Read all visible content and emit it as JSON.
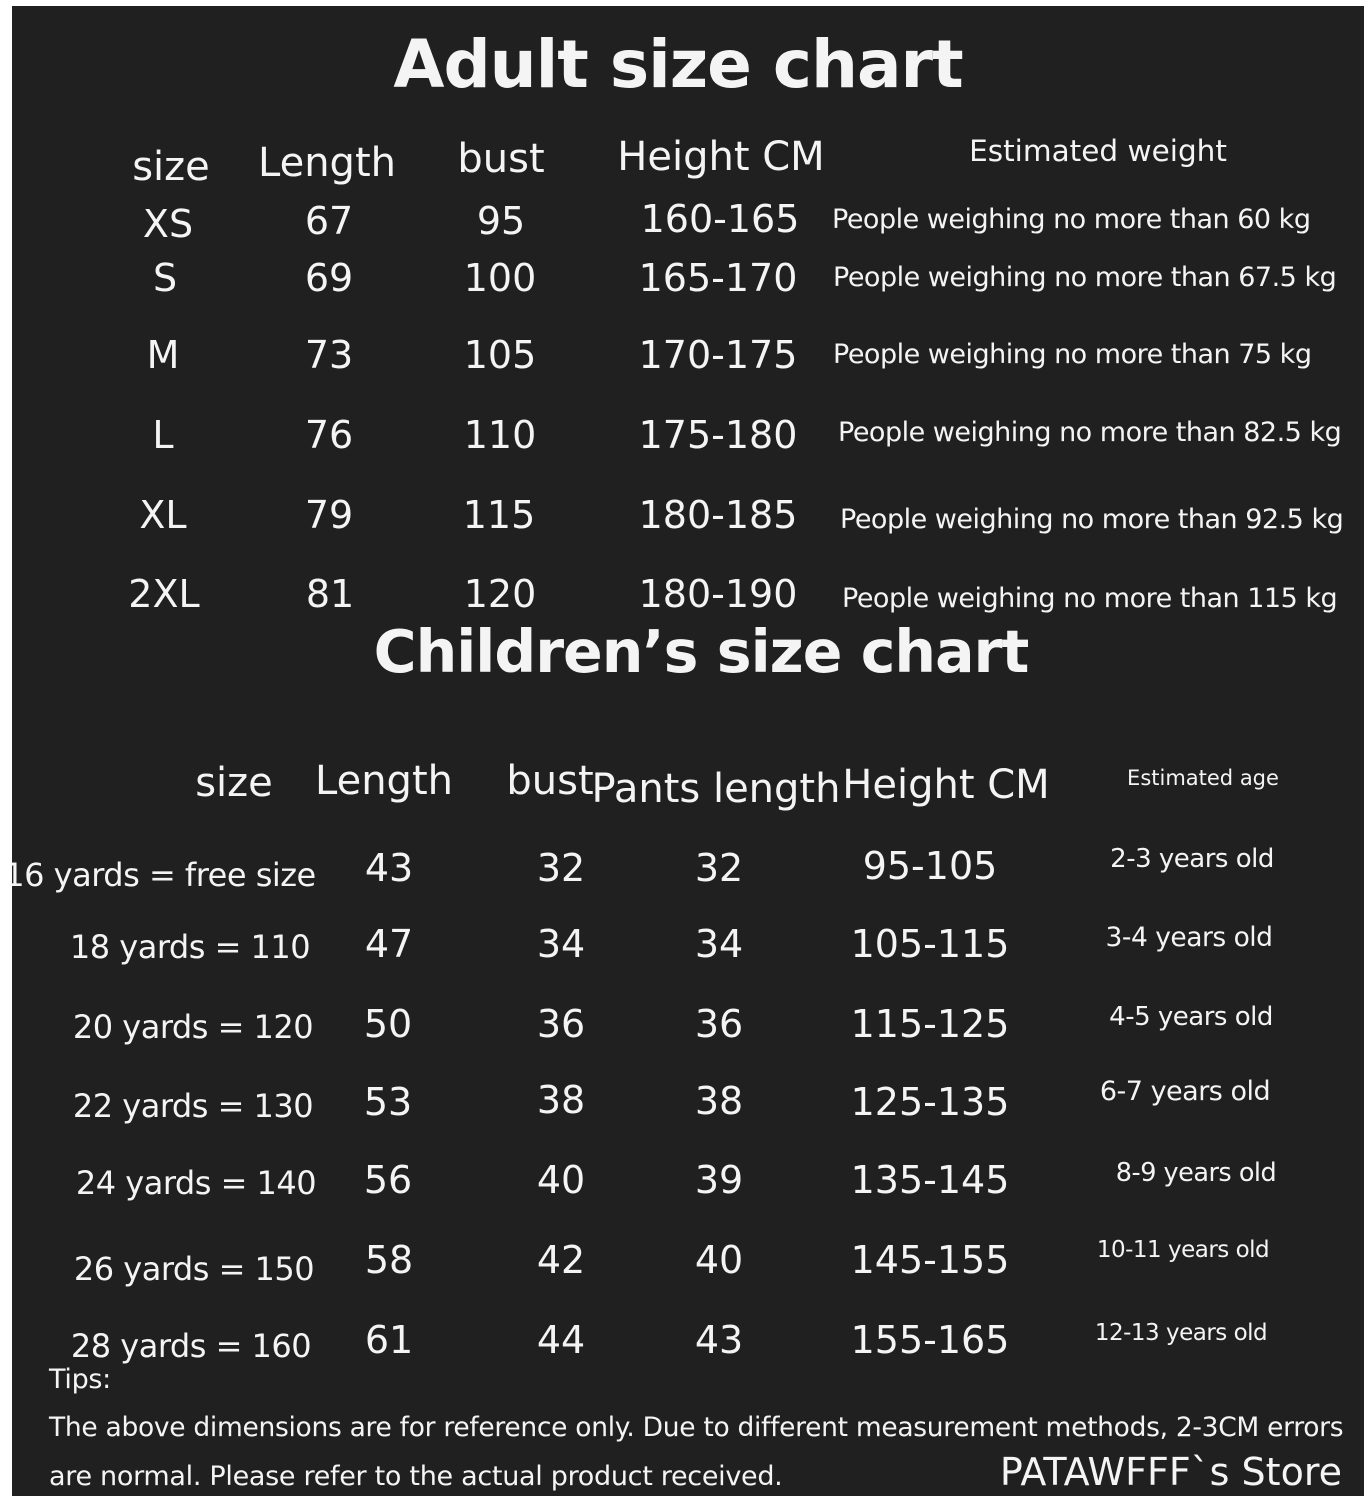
{
  "adult": {
    "title": "Adult size chart",
    "headers": {
      "size": "size",
      "length": "Length",
      "bust": "bust",
      "height": "Height CM",
      "weight": "Estimated weight"
    },
    "rows": [
      {
        "size": "XS",
        "length": "67",
        "bust": "95",
        "height": "160-165",
        "weight": "People weighing no more than 60 kg"
      },
      {
        "size": "S",
        "length": "69",
        "bust": "100",
        "height": "165-170",
        "weight": "People weighing no more than 67.5 kg"
      },
      {
        "size": "M",
        "length": "73",
        "bust": "105",
        "height": "170-175",
        "weight": "People weighing no more than 75 kg"
      },
      {
        "size": "L",
        "length": "76",
        "bust": "110",
        "height": "175-180",
        "weight": "People weighing no more than 82.5 kg"
      },
      {
        "size": "XL",
        "length": "79",
        "bust": "115",
        "height": "180-185",
        "weight": "People weighing no more than 92.5 kg"
      },
      {
        "size": "2XL",
        "length": "81",
        "bust": "120",
        "height": "180-190",
        "weight": "People weighing no more than 115 kg"
      }
    ]
  },
  "children": {
    "title": "Children’s size chart",
    "headers": {
      "size": "size",
      "length": "Length",
      "bust": "bust",
      "pants": "Pants length",
      "height": "Height CM",
      "age": "Estimated age"
    },
    "rows": [
      {
        "size": "16 yards = free size",
        "length": "43",
        "bust": "32",
        "pants": "32",
        "height": "95-105",
        "age": "2-3 years old"
      },
      {
        "size": "18 yards = 110",
        "length": "47",
        "bust": "34",
        "pants": "34",
        "height": "105-115",
        "age": "3-4 years old"
      },
      {
        "size": "20 yards = 120",
        "length": "50",
        "bust": "36",
        "pants": "36",
        "height": "115-125",
        "age": "4-5 years old"
      },
      {
        "size": "22 yards = 130",
        "length": "53",
        "bust": "38",
        "pants": "38",
        "height": "125-135",
        "age": "6-7 years old"
      },
      {
        "size": "24 yards = 140",
        "length": "56",
        "bust": "40",
        "pants": "39",
        "height": "135-145",
        "age": "8-9 years old"
      },
      {
        "size": "26 yards = 150",
        "length": "58",
        "bust": "42",
        "pants": "40",
        "height": "145-155",
        "age": "10-11 years old"
      },
      {
        "size": "28 yards = 160",
        "length": "61",
        "bust": "44",
        "pants": "43",
        "height": "155-165",
        "age": "12-13 years old"
      }
    ]
  },
  "tips": {
    "label": "Tips:",
    "line1": "The above dimensions are for reference only. Due to different measurement methods, 2-3CM errors",
    "line2": "are normal. Please refer to the actual product received."
  },
  "store": "PATAWFFF`s Store"
}
